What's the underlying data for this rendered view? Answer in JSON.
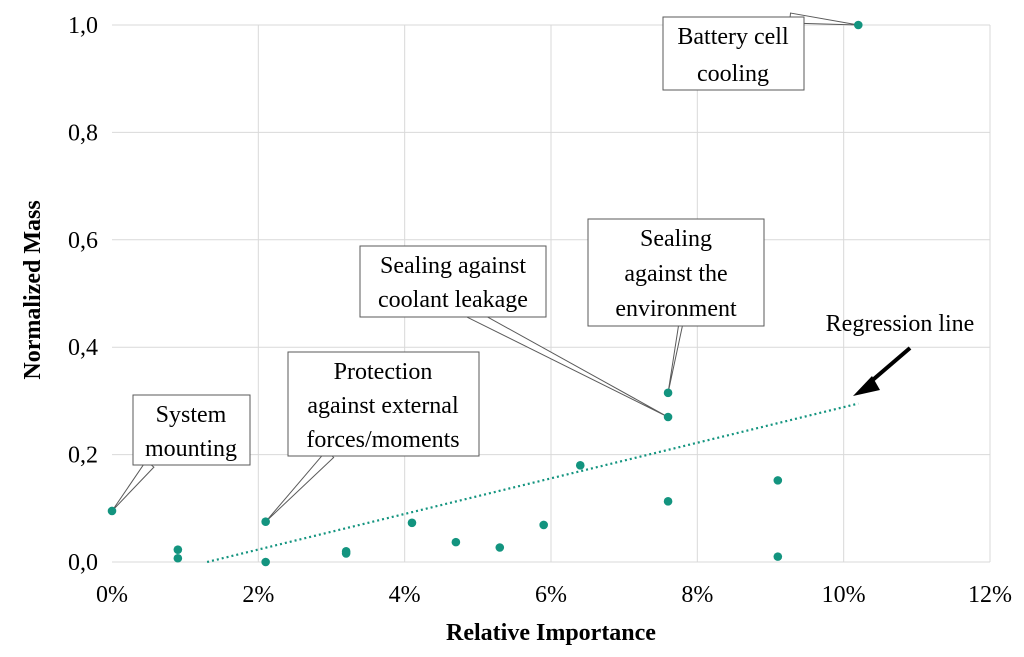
{
  "chart_data": {
    "type": "scatter",
    "xlabel": "Relative Importance",
    "ylabel": "Normalized Mass",
    "xlim": [
      0,
      0.12
    ],
    "ylim": [
      0,
      1.0
    ],
    "x_ticks": [
      {
        "value": 0.0,
        "label": "0%"
      },
      {
        "value": 0.02,
        "label": "2%"
      },
      {
        "value": 0.04,
        "label": "4%"
      },
      {
        "value": 0.06,
        "label": "6%"
      },
      {
        "value": 0.08,
        "label": "8%"
      },
      {
        "value": 0.1,
        "label": "10%"
      },
      {
        "value": 0.12,
        "label": "12%"
      }
    ],
    "y_ticks": [
      {
        "value": 0.0,
        "label": "0,0"
      },
      {
        "value": 0.2,
        "label": "0,2"
      },
      {
        "value": 0.4,
        "label": "0,4"
      },
      {
        "value": 0.6,
        "label": "0,6"
      },
      {
        "value": 0.8,
        "label": "0,8"
      },
      {
        "value": 1.0,
        "label": "1,0"
      }
    ],
    "grid": true,
    "marker_color": "#13947f",
    "points": [
      {
        "x": 0.0,
        "y": 0.095
      },
      {
        "x": 0.009,
        "y": 0.023
      },
      {
        "x": 0.009,
        "y": 0.007
      },
      {
        "x": 0.021,
        "y": 0.075
      },
      {
        "x": 0.021,
        "y": 0.0
      },
      {
        "x": 0.032,
        "y": 0.02
      },
      {
        "x": 0.032,
        "y": 0.016
      },
      {
        "x": 0.041,
        "y": 0.073
      },
      {
        "x": 0.047,
        "y": 0.037
      },
      {
        "x": 0.053,
        "y": 0.027
      },
      {
        "x": 0.059,
        "y": 0.069
      },
      {
        "x": 0.064,
        "y": 0.18
      },
      {
        "x": 0.076,
        "y": 0.315
      },
      {
        "x": 0.076,
        "y": 0.27
      },
      {
        "x": 0.076,
        "y": 0.113
      },
      {
        "x": 0.091,
        "y": 0.152
      },
      {
        "x": 0.091,
        "y": 0.01
      },
      {
        "x": 0.102,
        "y": 1.0
      }
    ],
    "regression": {
      "x_start": 0.013,
      "y_start": 0.0,
      "x_end": 0.102,
      "y_end": 0.295
    },
    "annotations": [
      {
        "lines": [
          "Battery cell",
          "cooling"
        ],
        "target": {
          "x": 0.102,
          "y": 1.0
        }
      },
      {
        "lines": [
          "Sealing",
          "against the",
          "environment"
        ],
        "target": {
          "x": 0.076,
          "y": 0.315
        }
      },
      {
        "lines": [
          "Sealing against",
          "coolant leakage"
        ],
        "target": {
          "x": 0.076,
          "y": 0.27
        }
      },
      {
        "lines": [
          "Protection",
          "against external",
          "forces/moments"
        ],
        "target": {
          "x": 0.021,
          "y": 0.075
        }
      },
      {
        "lines": [
          "System",
          "mounting"
        ],
        "target": {
          "x": 0.0,
          "y": 0.095
        }
      },
      {
        "lines": [
          "Regression line"
        ],
        "target": {
          "x": 0.102,
          "y": 0.295
        }
      }
    ]
  }
}
